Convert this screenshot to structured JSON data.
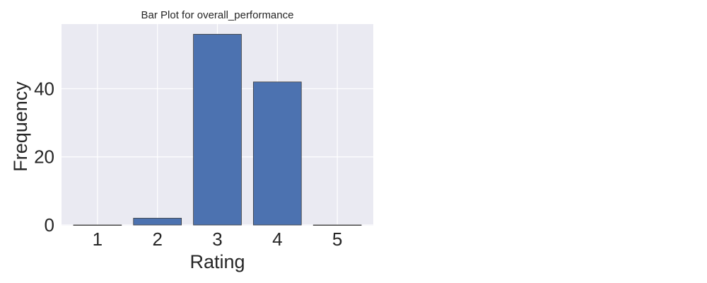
{
  "chart_data": {
    "type": "bar",
    "title": "Bar Plot for overall_performance",
    "xlabel": "Rating",
    "ylabel": "Frequency",
    "categories": [
      "1",
      "2",
      "3",
      "4",
      "5"
    ],
    "values": [
      0,
      2,
      56,
      42,
      0
    ],
    "ylim": [
      0,
      59
    ],
    "yticks": [
      0,
      20,
      40
    ],
    "grid": true,
    "colors": {
      "bar": "#4c72b0",
      "background": "#eaeaf2",
      "grid": "#ffffff",
      "text": "#262626"
    }
  }
}
